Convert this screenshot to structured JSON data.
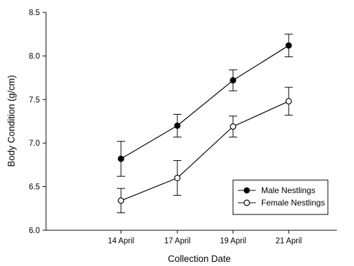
{
  "chart_data": {
    "type": "line",
    "title": "",
    "xlabel": "Collection Date",
    "ylabel": "Body Condition (g/cm)",
    "categories": [
      "14 April",
      "17 April",
      "19 April",
      "21 April"
    ],
    "ylim": [
      6.0,
      8.5
    ],
    "yticks": [
      "6.0",
      "6.5",
      "7.0",
      "7.5",
      "8.0",
      "8.5"
    ],
    "grid": false,
    "legend_position": "bottom-right",
    "series": [
      {
        "name": "Male Nestlings",
        "marker": "filled-circle",
        "color": "#000000",
        "values": [
          6.82,
          7.2,
          7.72,
          8.12
        ],
        "error": [
          0.2,
          0.13,
          0.12,
          0.13
        ]
      },
      {
        "name": "Female Nestlings",
        "marker": "open-circle",
        "color": "#000000",
        "values": [
          6.34,
          6.6,
          7.19,
          7.48
        ],
        "error": [
          0.14,
          0.2,
          0.12,
          0.16
        ]
      }
    ]
  }
}
